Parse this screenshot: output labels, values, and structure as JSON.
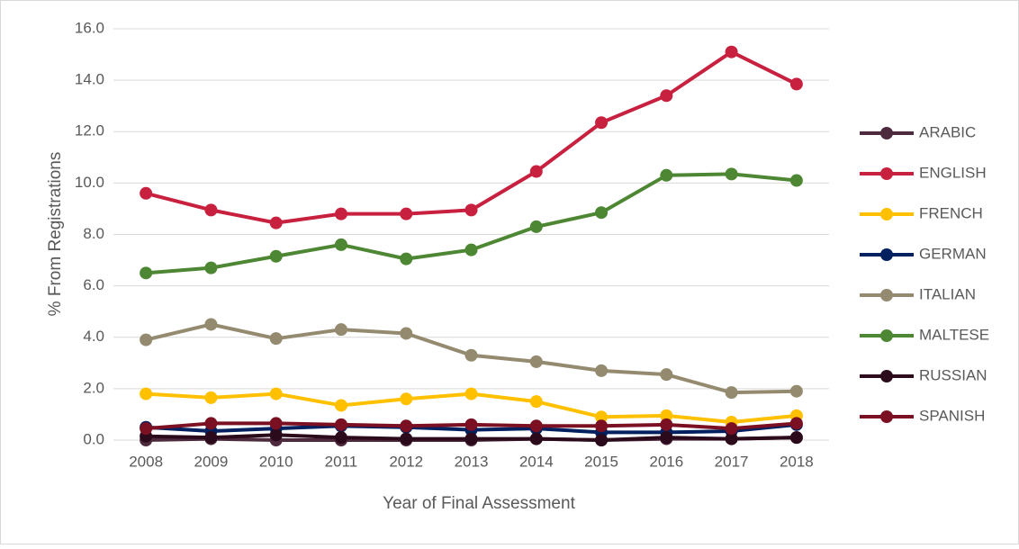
{
  "chart_data": {
    "type": "line",
    "x_label": "Year of Final Assessment",
    "y_label": "% From Registrations",
    "categories": [
      "2008",
      "2009",
      "2010",
      "2011",
      "2012",
      "2013",
      "2014",
      "2015",
      "2016",
      "2017",
      "2018"
    ],
    "ylim": [
      0,
      16
    ],
    "yticks": [
      {
        "value": 0,
        "label": "0.0"
      },
      {
        "value": 2,
        "label": "2.0"
      },
      {
        "value": 4,
        "label": "4.0"
      },
      {
        "value": 6,
        "label": "6.0"
      },
      {
        "value": 8,
        "label": "8.0"
      },
      {
        "value": 10,
        "label": "10.0"
      },
      {
        "value": 12,
        "label": "12.0"
      },
      {
        "value": 14,
        "label": "14.0"
      },
      {
        "value": 16,
        "label": "16.0"
      }
    ],
    "grid": true,
    "legend": "right",
    "series": [
      {
        "name": "ARABIC",
        "color": "#4e2a3e",
        "values": [
          0.0,
          0.05,
          0.0,
          0.0,
          0.0,
          0.0,
          0.05,
          0.0,
          0.05,
          0.05,
          0.1
        ]
      },
      {
        "name": "ENGLISH",
        "color": "#c8203f",
        "values": [
          9.6,
          8.95,
          8.45,
          8.8,
          8.8,
          8.95,
          10.45,
          12.35,
          13.4,
          15.1,
          13.85
        ]
      },
      {
        "name": "FRENCH",
        "color": "#ffc000",
        "values": [
          1.8,
          1.65,
          1.8,
          1.35,
          1.6,
          1.8,
          1.5,
          0.9,
          0.95,
          0.7,
          0.95
        ]
      },
      {
        "name": "GERMAN",
        "color": "#002060",
        "values": [
          0.5,
          0.35,
          0.45,
          0.55,
          0.5,
          0.4,
          0.45,
          0.3,
          0.3,
          0.35,
          0.6
        ]
      },
      {
        "name": "ITALIAN",
        "color": "#948a6f",
        "values": [
          3.9,
          4.5,
          3.95,
          4.3,
          4.15,
          3.3,
          3.05,
          2.7,
          2.55,
          1.85,
          1.9
        ]
      },
      {
        "name": "MALTESE",
        "color": "#4e8733",
        "values": [
          6.5,
          6.7,
          7.15,
          7.6,
          7.05,
          7.4,
          8.3,
          8.85,
          10.3,
          10.35,
          10.1
        ]
      },
      {
        "name": "RUSSIAN",
        "color": "#2b0a1c",
        "values": [
          0.15,
          0.1,
          0.2,
          0.1,
          0.05,
          0.05,
          0.05,
          0.0,
          0.1,
          0.05,
          0.1
        ]
      },
      {
        "name": "SPANISH",
        "color": "#7b1023",
        "values": [
          0.45,
          0.65,
          0.65,
          0.6,
          0.55,
          0.6,
          0.55,
          0.55,
          0.6,
          0.45,
          0.65
        ]
      }
    ]
  }
}
